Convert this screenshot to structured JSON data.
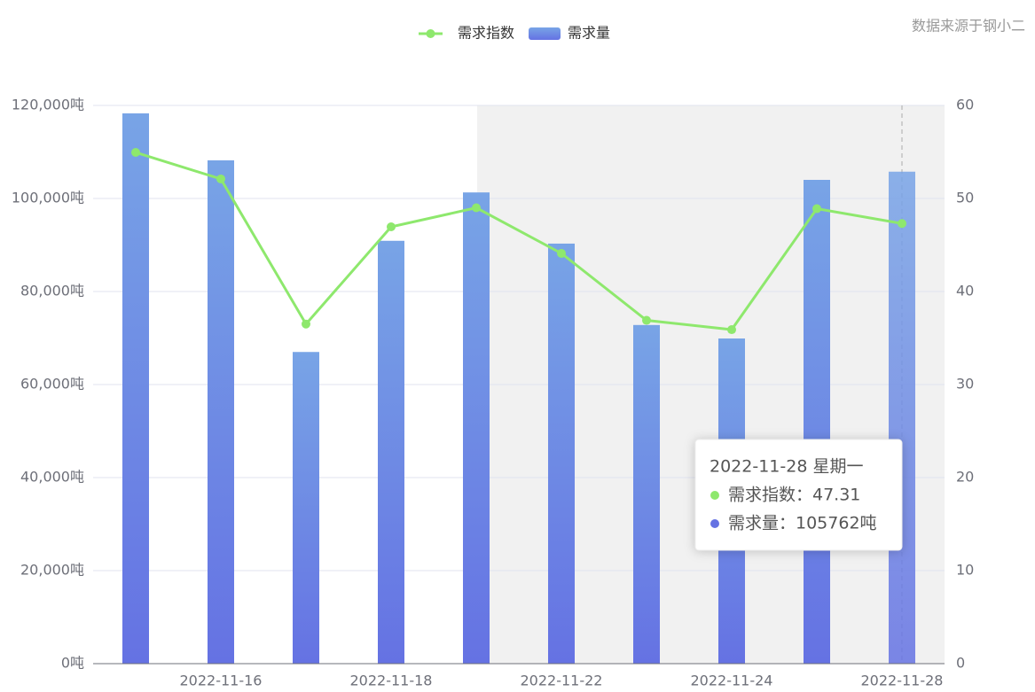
{
  "chart_data": {
    "type": "bar",
    "source": "数据来源于钢小二",
    "legend_position": "top",
    "categories": [
      null,
      "2022-11-16",
      null,
      "2022-11-18",
      null,
      "2022-11-22",
      null,
      "2022-11-24",
      null,
      "2022-11-28"
    ],
    "series": [
      {
        "name": "需求指数",
        "type": "line",
        "axis": "y2",
        "color": "#8ee86d",
        "values": [
          54.95,
          52.1,
          36.5,
          46.95,
          49.0,
          44.1,
          36.9,
          35.9,
          48.9,
          47.31
        ]
      },
      {
        "name": "需求量",
        "type": "bar",
        "colors": [
          "#78a4e6",
          "#6572e3"
        ],
        "values": [
          118300,
          108200,
          67000,
          90900,
          101300,
          90300,
          72800,
          69900,
          104000,
          105762
        ]
      }
    ],
    "ylim": [
      0,
      120000
    ],
    "yticks": [
      {
        "value": 0,
        "label": "0吨"
      },
      {
        "value": 20000,
        "label": "20,000吨"
      },
      {
        "value": 40000,
        "label": "40,000吨"
      },
      {
        "value": 60000,
        "label": "60,000吨"
      },
      {
        "value": 80000,
        "label": "80,000吨"
      },
      {
        "value": 100000,
        "label": "100,000吨"
      },
      {
        "value": 120000,
        "label": "120,000吨"
      }
    ],
    "y2lim": [
      0,
      60
    ],
    "y2ticks": [
      0,
      10,
      20,
      30,
      40,
      50,
      60
    ],
    "grid": true,
    "tooltip": {
      "title": "2022-11-28 星期一",
      "lines": [
        "需求指数：47.31",
        "需求量：105762吨"
      ]
    }
  }
}
